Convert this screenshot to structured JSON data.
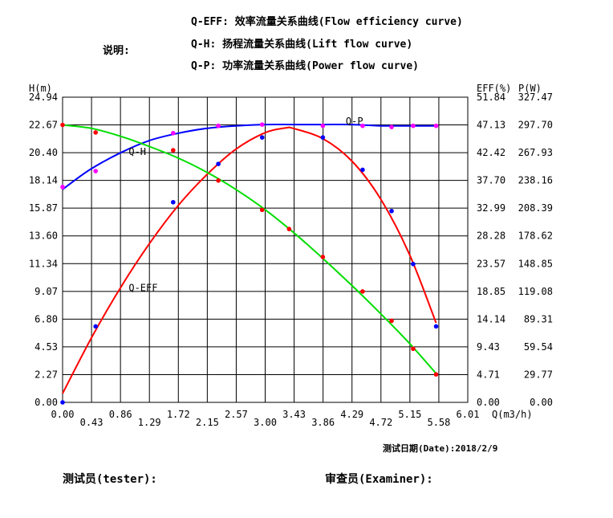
{
  "header": {
    "note_label": "说明:",
    "legend_lines": [
      "Q-EFF: 效率流量关系曲线(Flow efficiency curve)",
      "Q-H: 扬程流量关系曲线(Lift flow curve)",
      "Q-P: 功率流量关系曲线(Power flow curve)"
    ]
  },
  "footer": {
    "test_date": "测试日期(Date):2018/2/9",
    "tester": "测试员(tester):",
    "examiner": "审查员(Examiner):"
  },
  "colors": {
    "qh": "#0000ff",
    "qeff": "#ff0000",
    "qp": "#00dd00",
    "qh_points": "#ff00ff"
  },
  "chart_data": {
    "type": "line",
    "axes": {
      "x": {
        "label": "Q(m3/h)",
        "range": [
          0,
          6.01
        ],
        "ticks": [
          "0.00",
          "0.43",
          "0.86",
          "1.29",
          "1.72",
          "2.15",
          "2.57",
          "3.00",
          "3.43",
          "3.86",
          "4.29",
          "4.72",
          "5.15",
          "5.58",
          "6.01"
        ]
      },
      "y_left": {
        "label": "H(m)",
        "range": [
          0,
          24.94
        ],
        "ticks": [
          "0.00",
          "2.27",
          "4.53",
          "6.80",
          "9.07",
          "11.34",
          "13.60",
          "15.87",
          "18.14",
          "20.40",
          "22.67",
          "24.94"
        ]
      },
      "y_right1": {
        "label": "EFF(%)",
        "range": [
          0,
          51.84
        ],
        "ticks": [
          "0.00",
          "4.71",
          "9.43",
          "14.14",
          "18.85",
          "23.57",
          "28.28",
          "32.99",
          "37.70",
          "42.42",
          "47.13",
          "51.84"
        ]
      },
      "y_right2": {
        "label": "P(W)",
        "range": [
          0,
          327.47
        ],
        "ticks": [
          "0.00",
          "29.77",
          "59.54",
          "89.31",
          "119.08",
          "148.85",
          "178.62",
          "208.39",
          "238.16",
          "267.93",
          "297.70",
          "327.47"
        ]
      }
    },
    "grid": true,
    "series": [
      {
        "name": "Q-H",
        "axis": "y_left",
        "color": "#0000ff",
        "point_color": "#ff00ff",
        "points": [
          [
            0.0,
            17.6
          ],
          [
            0.49,
            18.9
          ],
          [
            1.64,
            22.0
          ],
          [
            2.31,
            22.6
          ],
          [
            2.96,
            22.7
          ],
          [
            3.86,
            22.6
          ],
          [
            4.45,
            22.6
          ],
          [
            4.88,
            22.5
          ],
          [
            5.2,
            22.6
          ],
          [
            5.54,
            22.6
          ]
        ],
        "curve": [
          [
            0.0,
            17.4
          ],
          [
            0.4,
            19.0
          ],
          [
            0.86,
            20.4
          ],
          [
            1.29,
            21.4
          ],
          [
            1.72,
            22.0
          ],
          [
            2.15,
            22.4
          ],
          [
            2.57,
            22.6
          ],
          [
            3.0,
            22.7
          ],
          [
            3.43,
            22.7
          ],
          [
            3.86,
            22.7
          ],
          [
            4.29,
            22.7
          ],
          [
            4.72,
            22.6
          ],
          [
            5.15,
            22.6
          ],
          [
            5.54,
            22.6
          ]
        ]
      },
      {
        "name": "Q-EFF",
        "axis": "y_right1",
        "color": "#ff0000",
        "point_color": "#0000ff",
        "points": [
          [
            0.0,
            0.0
          ],
          [
            0.49,
            12.9
          ],
          [
            1.64,
            34.0
          ],
          [
            2.31,
            40.5
          ],
          [
            2.96,
            45.0
          ],
          [
            3.86,
            45.0
          ],
          [
            4.45,
            39.5
          ],
          [
            4.88,
            32.5
          ],
          [
            5.2,
            23.5
          ],
          [
            5.54,
            12.9
          ]
        ],
        "curve": [
          [
            0.0,
            1.5
          ],
          [
            0.43,
            11.0
          ],
          [
            0.86,
            19.5
          ],
          [
            1.29,
            27.0
          ],
          [
            1.72,
            33.5
          ],
          [
            2.15,
            38.8
          ],
          [
            2.57,
            43.0
          ],
          [
            3.0,
            45.8
          ],
          [
            3.3,
            46.6
          ],
          [
            3.43,
            46.5
          ],
          [
            3.86,
            44.8
          ],
          [
            4.29,
            41.0
          ],
          [
            4.72,
            34.5
          ],
          [
            5.15,
            25.0
          ],
          [
            5.54,
            13.5
          ]
        ]
      },
      {
        "name": "Q-P",
        "axis": "y_right2",
        "color": "#00dd00",
        "point_color": "#ff0000",
        "points": [
          [
            0.0,
            297.7
          ],
          [
            0.49,
            289.6
          ],
          [
            1.64,
            270.5
          ],
          [
            2.31,
            238.0
          ],
          [
            2.96,
            206.5
          ],
          [
            3.36,
            186.0
          ],
          [
            3.86,
            156.0
          ],
          [
            4.45,
            119.0
          ],
          [
            4.88,
            87.5
          ],
          [
            5.2,
            57.5
          ],
          [
            5.54,
            30.0
          ]
        ],
        "curve": [
          [
            0.0,
            297.7
          ],
          [
            0.43,
            294.0
          ],
          [
            0.86,
            285.5
          ],
          [
            1.29,
            274.5
          ],
          [
            1.72,
            262.0
          ],
          [
            2.15,
            246.5
          ],
          [
            2.57,
            228.5
          ],
          [
            3.0,
            207.0
          ],
          [
            3.43,
            182.0
          ],
          [
            3.86,
            154.5
          ],
          [
            4.29,
            125.5
          ],
          [
            4.72,
            95.0
          ],
          [
            5.15,
            63.0
          ],
          [
            5.54,
            31.0
          ]
        ]
      }
    ],
    "curve_labels": [
      {
        "text": "Q-H",
        "series": "Q-H",
        "x": 0.98,
        "y": 20.2
      },
      {
        "text": "Q-P",
        "series": "Q-P",
        "x": 4.2,
        "y": 22.7
      },
      {
        "text": "Q-EFF",
        "series": "Q-EFF",
        "x": 0.98,
        "y": 9.1
      }
    ]
  }
}
